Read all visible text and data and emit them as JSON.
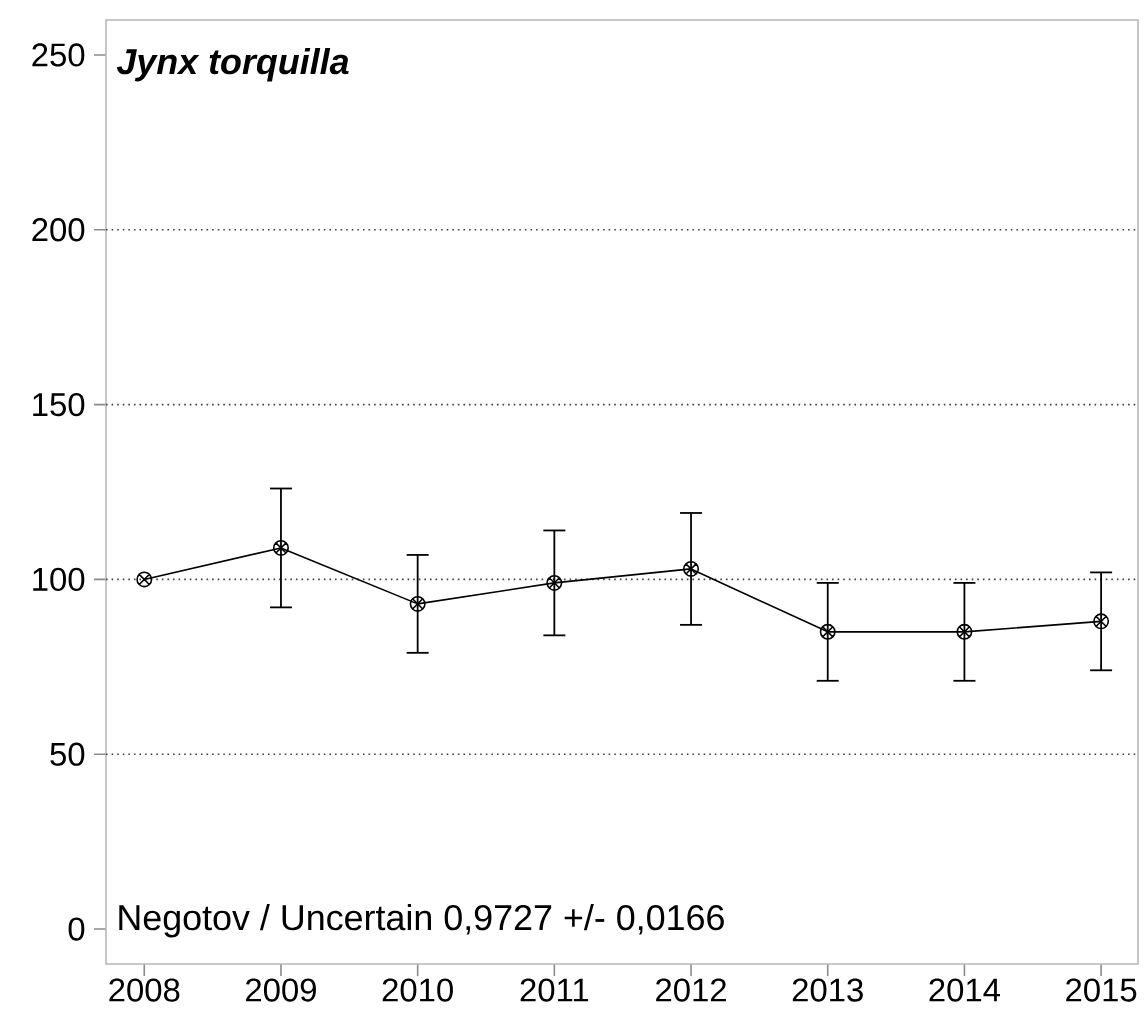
{
  "chart_data": {
    "type": "line",
    "title": "Jynx torquilla",
    "categories": [
      "2008",
      "2009",
      "2010",
      "2011",
      "2012",
      "2013",
      "2014",
      "2015"
    ],
    "values": [
      100,
      109,
      93,
      99,
      103,
      85,
      85,
      88
    ],
    "errors": [
      null,
      17,
      14,
      15,
      16,
      14,
      14,
      14
    ],
    "color": "#000000",
    "ylim": [
      -10,
      260
    ],
    "yticks": [
      0,
      50,
      100,
      150,
      200,
      250
    ],
    "grid": "y",
    "marker": "cross",
    "line_style": "solid",
    "annotations": [
      "Negotov / Uncertain 0,9727 +/- 0,0166"
    ]
  }
}
